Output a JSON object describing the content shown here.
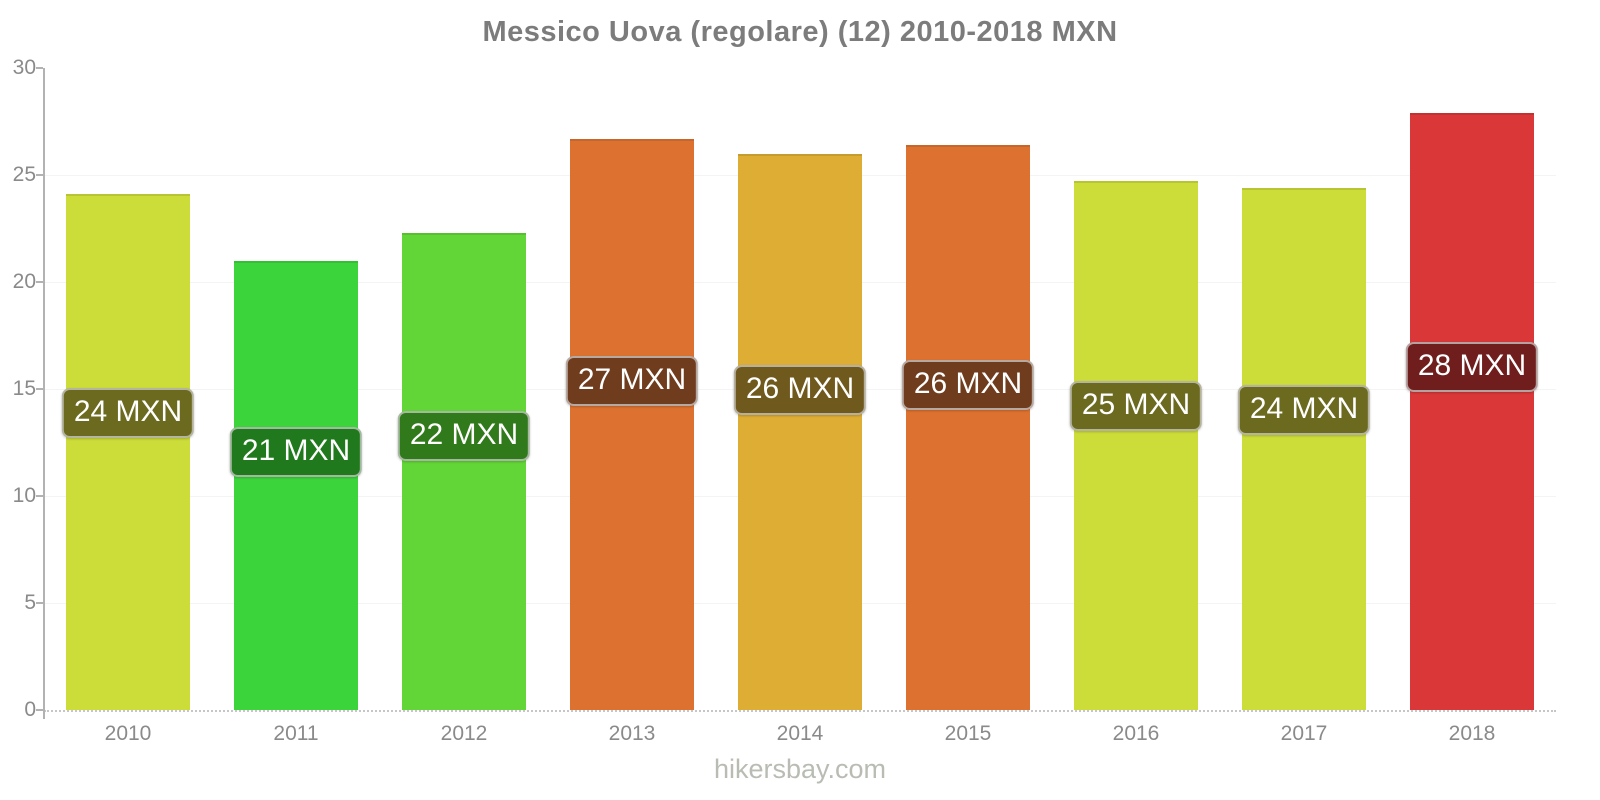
{
  "title": "Messico Uova (regolare) (12) 2010-2018 MXN",
  "footer": "hikersbay.com",
  "chart_data": {
    "type": "bar",
    "title": "Messico Uova (regolare) (12) 2010-2018 MXN",
    "xlabel": "",
    "ylabel": "",
    "ylim": [
      0,
      30
    ],
    "yticks": [
      0,
      5,
      10,
      15,
      20,
      25,
      30
    ],
    "grid": "horizontal-light",
    "legend": "none",
    "currency": "MXN",
    "categories": [
      "2010",
      "2011",
      "2012",
      "2013",
      "2014",
      "2015",
      "2016",
      "2017",
      "2018"
    ],
    "values": [
      24.1,
      21.0,
      22.3,
      26.7,
      26.0,
      26.4,
      24.7,
      24.4,
      27.9
    ],
    "bar_labels": [
      "24 MXN",
      "21 MXN",
      "22 MXN",
      "27 MXN",
      "26 MXN",
      "26 MXN",
      "25 MXN",
      "24 MXN",
      "28 MXN"
    ],
    "bar_colors": [
      "#ccdc38",
      "#3bd53b",
      "#62d636",
      "#dd7230",
      "#deae34",
      "#dd7230",
      "#ccdc38",
      "#ccdc38",
      "#da3838"
    ],
    "badge_colors": [
      "#6c6a1f",
      "#20791c",
      "#317a1b",
      "#703c1e",
      "#70591d",
      "#703c1e",
      "#6c6a1f",
      "#6c6a1f",
      "#701d1d"
    ],
    "axis_color": "#b2b2b2",
    "label_color": "#8a8a8a"
  }
}
